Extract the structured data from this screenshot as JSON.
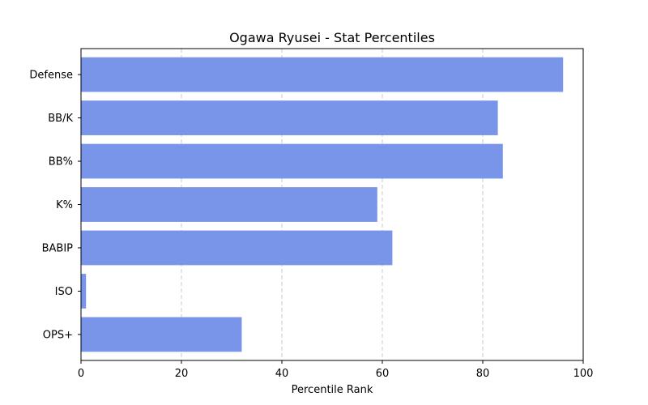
{
  "chart_data": {
    "type": "bar",
    "orientation": "horizontal",
    "title": "Ogawa Ryusei - Stat Percentiles",
    "xlabel": "Percentile Rank",
    "ylabel": "",
    "categories": [
      "Defense",
      "BB/K",
      "BB%",
      "K%",
      "BABIP",
      "ISO",
      "OPS+"
    ],
    "values": [
      96,
      83,
      84,
      59,
      62,
      1,
      32
    ],
    "xlim": [
      0,
      100
    ],
    "xticks": [
      "0",
      "20",
      "40",
      "60",
      "80",
      "100"
    ],
    "grid": "x-dashed",
    "bar_color": "#7895ea",
    "grid_color": "#c8c8c8"
  }
}
